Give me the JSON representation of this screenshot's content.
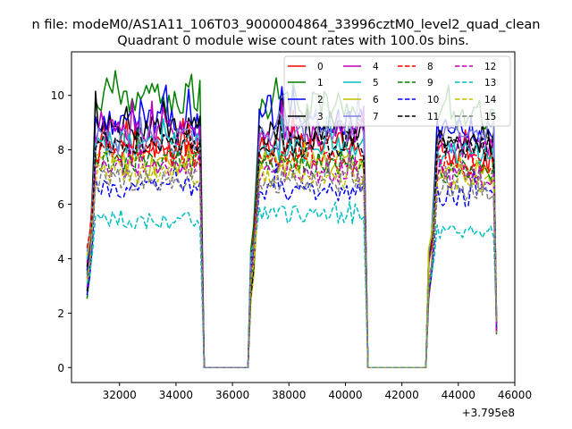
{
  "figure": {
    "suptitle": "n file: modeM0/AS1A11_106T03_9000004864_33996cztM0_level2_quad_clean",
    "title": "Quadrant 0 module wise count rates with 100.0s bins.",
    "x_offset_label": "+3.795e8"
  },
  "chart_data": {
    "type": "line",
    "title": "Quadrant 0 module wise count rates with 100.0s bins.",
    "xlabel": "",
    "ylabel": "",
    "x_offset": 379500000,
    "xlim": [
      30300,
      46000
    ],
    "ylim": [
      -0.55,
      11.6
    ],
    "xticks": [
      32000,
      34000,
      36000,
      38000,
      40000,
      42000,
      44000,
      46000
    ],
    "xtick_labels": [
      "32000",
      "34000",
      "36000",
      "38000",
      "40000",
      "42000",
      "44000",
      "46000"
    ],
    "yticks": [
      0,
      2,
      4,
      6,
      8,
      10
    ],
    "ytick_labels": [
      "0",
      "2",
      "4",
      "6",
      "8",
      "10"
    ],
    "grid": false,
    "legend_position": "top-right",
    "legend_columns": 4,
    "segments": [
      {
        "start": 30850,
        "end": 34850,
        "zero_after_to": 36550
      },
      {
        "start": 36650,
        "end": 40650,
        "zero_after_to": 42850
      },
      {
        "start": 42950,
        "end": 45400
      }
    ],
    "series": [
      {
        "name": "0",
        "color": "#ff0000",
        "dash": "solid",
        "levels": [
          8.0,
          8.2,
          7.6
        ]
      },
      {
        "name": "1",
        "color": "#008000",
        "dash": "solid",
        "levels": [
          9.9,
          9.6,
          9.3
        ]
      },
      {
        "name": "2",
        "color": "#0000ff",
        "dash": "solid",
        "levels": [
          9.0,
          9.0,
          8.7
        ]
      },
      {
        "name": "3",
        "color": "#000000",
        "dash": "solid",
        "levels": [
          8.8,
          8.6,
          8.4
        ]
      },
      {
        "name": "4",
        "color": "#bf00bf",
        "dash": "solid",
        "levels": [
          8.6,
          8.5,
          8.2
        ]
      },
      {
        "name": "5",
        "color": "#00bfbf",
        "dash": "solid",
        "levels": [
          8.2,
          8.0,
          7.8
        ]
      },
      {
        "name": "6",
        "color": "#bfbf00",
        "dash": "solid",
        "levels": [
          7.5,
          7.5,
          7.1
        ]
      },
      {
        "name": "7",
        "color": "#7f7fdf",
        "dash": "solid",
        "levels": [
          8.3,
          8.8,
          8.6
        ]
      },
      {
        "name": "8",
        "color": "#ff0000",
        "dash": "dashed",
        "levels": [
          7.8,
          7.6,
          7.4
        ]
      },
      {
        "name": "9",
        "color": "#008000",
        "dash": "dashed",
        "levels": [
          7.6,
          7.5,
          7.2
        ]
      },
      {
        "name": "10",
        "color": "#0000ff",
        "dash": "dashed",
        "levels": [
          6.6,
          6.5,
          6.3
        ]
      },
      {
        "name": "11",
        "color": "#000000",
        "dash": "dashed",
        "levels": [
          8.3,
          8.2,
          8.0
        ]
      },
      {
        "name": "12",
        "color": "#bf00bf",
        "dash": "dashed",
        "levels": [
          7.3,
          7.2,
          7.0
        ]
      },
      {
        "name": "13",
        "color": "#00bfbf",
        "dash": "dashed",
        "levels": [
          5.4,
          5.6,
          5.0
        ]
      },
      {
        "name": "14",
        "color": "#bfbf00",
        "dash": "dashed",
        "levels": [
          7.1,
          7.0,
          6.8
        ]
      },
      {
        "name": "15",
        "color": "#808080",
        "dash": "dashed",
        "levels": [
          6.9,
          6.8,
          6.5
        ]
      }
    ]
  }
}
